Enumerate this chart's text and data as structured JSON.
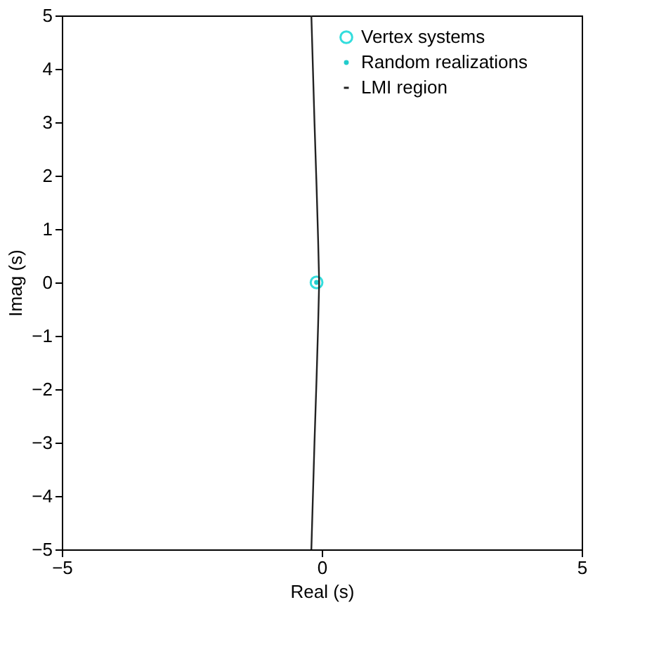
{
  "chart_data": {
    "type": "scatter",
    "xlabel": "Real (s)",
    "ylabel": "Imag (s)",
    "xlim": [
      -5,
      5
    ],
    "ylim": [
      -5,
      5
    ],
    "xticks": [
      -5,
      0,
      5
    ],
    "yticks": [
      -5,
      -4,
      -3,
      -2,
      -1,
      0,
      1,
      2,
      3,
      4,
      5
    ],
    "grid": false,
    "legend": "top right",
    "series": [
      {
        "name": "Vertex systems",
        "marker": "circle",
        "color": "#33dddd",
        "x": [
          -0.1
        ],
        "values": [
          0
        ]
      },
      {
        "name": "Random realizations",
        "marker": "circle",
        "color": "#22cccc",
        "x": [
          -0.1
        ],
        "values": [
          0
        ]
      },
      {
        "name": "LMI region",
        "type": "line",
        "marker": "none",
        "line_style": "solid",
        "color": "#222222",
        "x": [
          -0.2,
          -0.14,
          -0.1,
          -0.07,
          -0.05,
          -0.07,
          -0.1,
          -0.14,
          -0.2
        ],
        "values": [
          -5,
          -3,
          -1.8,
          -0.8,
          0,
          0.8,
          1.8,
          3,
          5
        ]
      }
    ]
  }
}
